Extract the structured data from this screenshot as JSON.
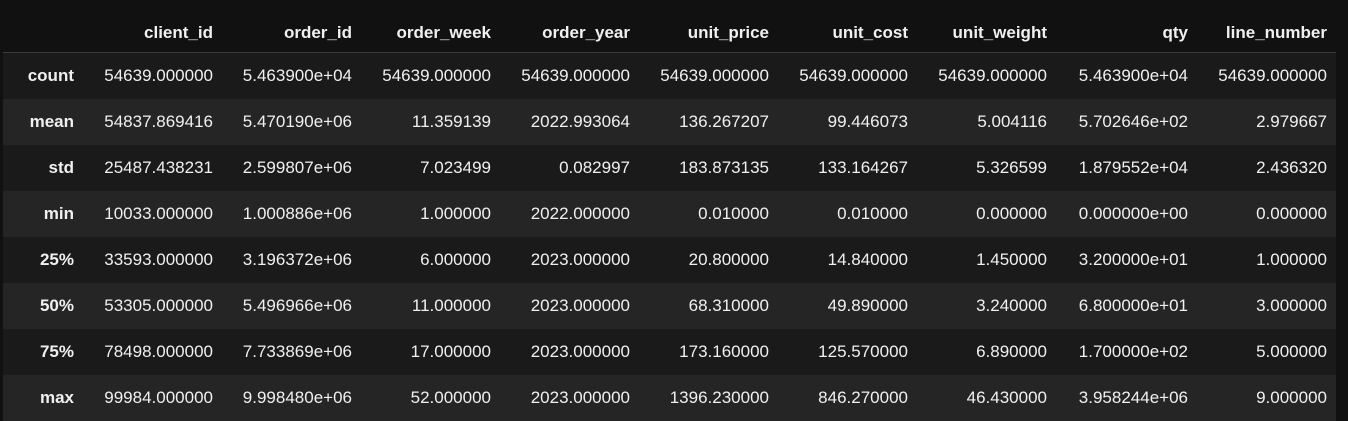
{
  "table": {
    "index_header": "",
    "columns": [
      "client_id",
      "order_id",
      "order_week",
      "order_year",
      "unit_price",
      "unit_cost",
      "unit_weight",
      "qty",
      "line_number"
    ],
    "rows": [
      {
        "label": "count",
        "cells": [
          "54639.000000",
          "5.463900e+04",
          "54639.000000",
          "54639.000000",
          "54639.000000",
          "54639.000000",
          "54639.000000",
          "5.463900e+04",
          "54639.000000"
        ]
      },
      {
        "label": "mean",
        "cells": [
          "54837.869416",
          "5.470190e+06",
          "11.359139",
          "2022.993064",
          "136.267207",
          "99.446073",
          "5.004116",
          "5.702646e+02",
          "2.979667"
        ]
      },
      {
        "label": "std",
        "cells": [
          "25487.438231",
          "2.599807e+06",
          "7.023499",
          "0.082997",
          "183.873135",
          "133.164267",
          "5.326599",
          "1.879552e+04",
          "2.436320"
        ]
      },
      {
        "label": "min",
        "cells": [
          "10033.000000",
          "1.000886e+06",
          "1.000000",
          "2022.000000",
          "0.010000",
          "0.010000",
          "0.000000",
          "0.000000e+00",
          "0.000000"
        ]
      },
      {
        "label": "25%",
        "cells": [
          "33593.000000",
          "3.196372e+06",
          "6.000000",
          "2023.000000",
          "20.800000",
          "14.840000",
          "1.450000",
          "3.200000e+01",
          "1.000000"
        ]
      },
      {
        "label": "50%",
        "cells": [
          "53305.000000",
          "5.496966e+06",
          "11.000000",
          "2023.000000",
          "68.310000",
          "49.890000",
          "3.240000",
          "6.800000e+01",
          "3.000000"
        ]
      },
      {
        "label": "75%",
        "cells": [
          "78498.000000",
          "7.733869e+06",
          "17.000000",
          "2023.000000",
          "173.160000",
          "125.570000",
          "6.890000",
          "1.700000e+02",
          "5.000000"
        ]
      },
      {
        "label": "max",
        "cells": [
          "99984.000000",
          "9.998480e+06",
          "52.000000",
          "2023.000000",
          "1396.230000",
          "846.270000",
          "46.430000",
          "3.958244e+06",
          "9.000000"
        ]
      }
    ]
  },
  "colors": {
    "background": "#111111",
    "row_odd": "#1a1a1a",
    "row_even": "#252525",
    "text": "#f0f0f0"
  }
}
